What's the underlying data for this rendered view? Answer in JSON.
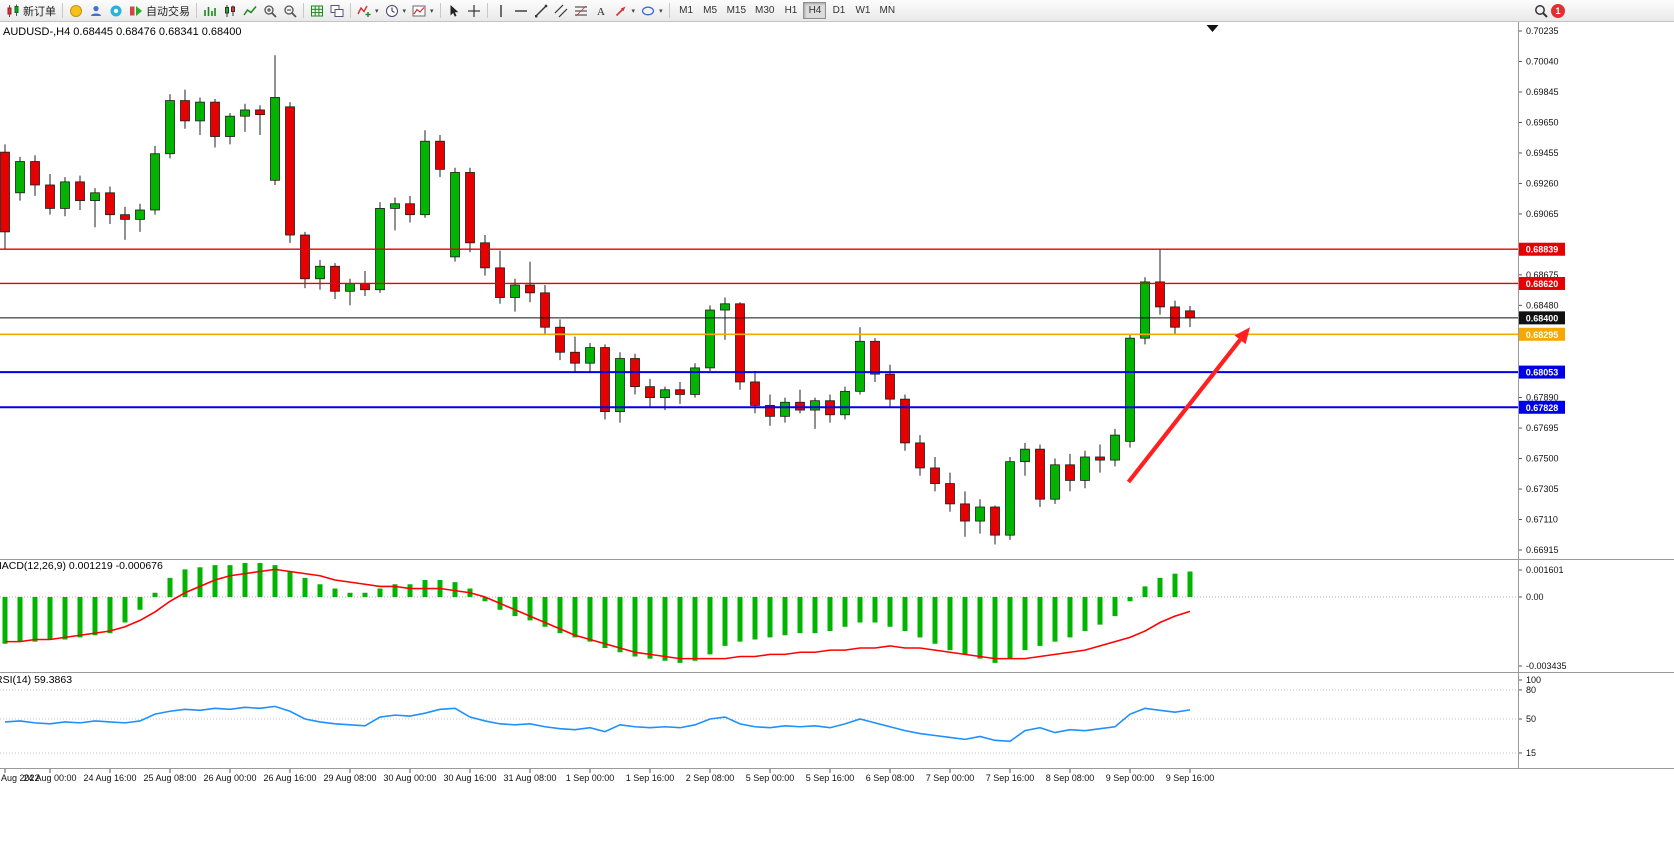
{
  "toolbar": {
    "new_order_label": "新订单",
    "auto_trading_label": "自动交易",
    "timeframes": [
      "M1",
      "M5",
      "M15",
      "M30",
      "H1",
      "H4",
      "D1",
      "W1",
      "MN"
    ],
    "active_timeframe": "H4",
    "notification_count": "1",
    "icons": [
      "new-order-icon",
      "mql5-icon",
      "profile-icon",
      "community-icon",
      "auto-trading-icon",
      "bar-chart-icon",
      "candlestick-chart-icon",
      "line-chart-icon",
      "zoom-in-icon",
      "zoom-out-icon",
      "grid-icon",
      "windows-icon",
      "indicators-icon",
      "periods-icon",
      "templates-icon",
      "cursor-icon",
      "crosshair-icon",
      "vertical-line-icon",
      "horizontal-line-icon",
      "trendline-icon",
      "channel-icon",
      "fibonacci-icon",
      "text-icon",
      "arrows-icon",
      "shapes-icon",
      "search-icon",
      "notification-badge"
    ]
  },
  "chart_header": {
    "title": "AUDUSD-,H4  0.68445 0.68476 0.68341 0.68400"
  },
  "price_axis": {
    "ticks": [
      "0.70235",
      "0.70040",
      "0.69845",
      "0.69650",
      "0.69455",
      "0.69260",
      "0.69065",
      "0.68675",
      "0.68480",
      "0.67890",
      "0.67695",
      "0.67500",
      "0.67305",
      "0.67110",
      "0.66915"
    ]
  },
  "lines": [
    {
      "label": "0.68839",
      "price": 0.68839,
      "color": "#e60000",
      "width": 1.4
    },
    {
      "label": "0.68620",
      "price": 0.6862,
      "color": "#e60000",
      "width": 1.4
    },
    {
      "label": "0.68400",
      "price": 0.684,
      "color": "#111111",
      "width": 1
    },
    {
      "label": "0.68295",
      "price": 0.68295,
      "color": "#f5a800",
      "width": 1.6
    },
    {
      "label": "0.68053",
      "price": 0.68053,
      "color": "#0000e6",
      "width": 2
    },
    {
      "label": "0.67828",
      "price": 0.67828,
      "color": "#0000e6",
      "width": 2
    }
  ],
  "indicators": {
    "macd": {
      "label": "MACD(12,26,9) 0.001219 -0.000676",
      "value_main": 0.001219,
      "value_signal": -0.000676,
      "axis_ticks": [
        "0.001601",
        "0.00",
        "-0.003435"
      ],
      "range": [
        -0.003435,
        0.001601
      ]
    },
    "rsi": {
      "label": "RSI(14) 59.3863",
      "value": 59.3863,
      "axis_ticks": [
        "100",
        "80",
        "50",
        "15"
      ],
      "levels": [
        80,
        50,
        15
      ]
    }
  },
  "time_axis": {
    "labels": [
      {
        "text": "Aug 2022",
        "bar": 0
      },
      {
        "text": "24 Aug 00:00",
        "bar": 3
      },
      {
        "text": "24 Aug 16:00",
        "bar": 7
      },
      {
        "text": "25 Aug 08:00",
        "bar": 11
      },
      {
        "text": "26 Aug 00:00",
        "bar": 15
      },
      {
        "text": "26 Aug 16:00",
        "bar": 19
      },
      {
        "text": "29 Aug 08:00",
        "bar": 23
      },
      {
        "text": "30 Aug 00:00",
        "bar": 27
      },
      {
        "text": "30 Aug 16:00",
        "bar": 31
      },
      {
        "text": "31 Aug 08:00",
        "bar": 35
      },
      {
        "text": "1 Sep 00:00",
        "bar": 39
      },
      {
        "text": "1 Sep 16:00",
        "bar": 43
      },
      {
        "text": "2 Sep 08:00",
        "bar": 47
      },
      {
        "text": "5 Sep 00:00",
        "bar": 51
      },
      {
        "text": "5 Sep 16:00",
        "bar": 55
      },
      {
        "text": "6 Sep 08:00",
        "bar": 59
      },
      {
        "text": "7 Sep 00:00",
        "bar": 63
      },
      {
        "text": "7 Sep 16:00",
        "bar": 67
      },
      {
        "text": "8 Sep 08:00",
        "bar": 71
      },
      {
        "text": "9 Sep 00:00",
        "bar": 75
      },
      {
        "text": "9 Sep 16:00",
        "bar": 79
      }
    ]
  },
  "annotations": {
    "arrow": {
      "from_bar": 74.9,
      "from_price": 0.6735,
      "to_bar": 83.0,
      "to_price": 0.6834,
      "color": "#ff2020"
    },
    "marker_bar": 80.5
  },
  "chart_data": {
    "type": "candlestick",
    "symbol": "AUDUSD-",
    "period": "H4",
    "current": {
      "open": 0.68445,
      "high": 0.68476,
      "low": 0.68341,
      "close": 0.684
    },
    "y_range": [
      0.66915,
      0.70235
    ],
    "ohlc": [
      [
        0.6946,
        0.6951,
        0.6884,
        0.6895
      ],
      [
        0.692,
        0.6943,
        0.6915,
        0.694
      ],
      [
        0.694,
        0.6944,
        0.6918,
        0.6925
      ],
      [
        0.6925,
        0.6932,
        0.6906,
        0.691
      ],
      [
        0.691,
        0.693,
        0.6905,
        0.6927
      ],
      [
        0.6927,
        0.6931,
        0.6909,
        0.6915
      ],
      [
        0.6915,
        0.6923,
        0.6898,
        0.692
      ],
      [
        0.692,
        0.6924,
        0.69,
        0.6906
      ],
      [
        0.6906,
        0.6911,
        0.689,
        0.6903
      ],
      [
        0.6903,
        0.6913,
        0.6895,
        0.6909
      ],
      [
        0.6909,
        0.695,
        0.6906,
        0.6945
      ],
      [
        0.6945,
        0.6983,
        0.6942,
        0.6979
      ],
      [
        0.6979,
        0.6986,
        0.6961,
        0.6966
      ],
      [
        0.6966,
        0.6981,
        0.6957,
        0.6978
      ],
      [
        0.6978,
        0.698,
        0.6949,
        0.6956
      ],
      [
        0.6956,
        0.6971,
        0.6951,
        0.6969
      ],
      [
        0.6969,
        0.6977,
        0.6959,
        0.6973
      ],
      [
        0.6973,
        0.6976,
        0.6957,
        0.697
      ],
      [
        0.6928,
        0.7008,
        0.6925,
        0.6981
      ],
      [
        0.6975,
        0.6978,
        0.6888,
        0.6893
      ],
      [
        0.6893,
        0.6895,
        0.6859,
        0.6865
      ],
      [
        0.6865,
        0.6877,
        0.6858,
        0.6873
      ],
      [
        0.6873,
        0.6875,
        0.6852,
        0.6857
      ],
      [
        0.6857,
        0.6865,
        0.6848,
        0.6862
      ],
      [
        0.6862,
        0.687,
        0.6854,
        0.6858
      ],
      [
        0.6858,
        0.6914,
        0.6856,
        0.691
      ],
      [
        0.691,
        0.6917,
        0.6896,
        0.6913
      ],
      [
        0.6913,
        0.6918,
        0.6901,
        0.6906
      ],
      [
        0.6906,
        0.696,
        0.6904,
        0.6953
      ],
      [
        0.6953,
        0.6957,
        0.693,
        0.6935
      ],
      [
        0.6879,
        0.6936,
        0.6876,
        0.6933
      ],
      [
        0.6933,
        0.6936,
        0.6882,
        0.6888
      ],
      [
        0.6888,
        0.6893,
        0.6867,
        0.6872
      ],
      [
        0.6872,
        0.6883,
        0.6849,
        0.6853
      ],
      [
        0.6853,
        0.6865,
        0.6844,
        0.6861
      ],
      [
        0.6861,
        0.6876,
        0.685,
        0.6856
      ],
      [
        0.6856,
        0.6861,
        0.6829,
        0.6834
      ],
      [
        0.6834,
        0.6839,
        0.6813,
        0.6818
      ],
      [
        0.6818,
        0.6828,
        0.6805,
        0.6811
      ],
      [
        0.6811,
        0.6824,
        0.6805,
        0.6821
      ],
      [
        0.6821,
        0.6823,
        0.6775,
        0.678
      ],
      [
        0.678,
        0.6818,
        0.6773,
        0.6814
      ],
      [
        0.6814,
        0.6817,
        0.6791,
        0.6796
      ],
      [
        0.6796,
        0.6801,
        0.6783,
        0.6789
      ],
      [
        0.6789,
        0.6796,
        0.6781,
        0.6794
      ],
      [
        0.6794,
        0.6799,
        0.6785,
        0.6791
      ],
      [
        0.6791,
        0.6811,
        0.6789,
        0.6808
      ],
      [
        0.6808,
        0.6848,
        0.6806,
        0.6845
      ],
      [
        0.6845,
        0.6853,
        0.6826,
        0.6849
      ],
      [
        0.6849,
        0.685,
        0.6794,
        0.6799
      ],
      [
        0.6799,
        0.6806,
        0.6779,
        0.6784
      ],
      [
        0.6784,
        0.6791,
        0.6771,
        0.6777
      ],
      [
        0.6777,
        0.6789,
        0.6773,
        0.6786
      ],
      [
        0.6786,
        0.6794,
        0.6779,
        0.6781
      ],
      [
        0.6781,
        0.6789,
        0.6769,
        0.6787
      ],
      [
        0.6787,
        0.6791,
        0.6773,
        0.6778
      ],
      [
        0.6778,
        0.6796,
        0.6775,
        0.6793
      ],
      [
        0.6793,
        0.6834,
        0.6791,
        0.6825
      ],
      [
        0.6825,
        0.6827,
        0.6799,
        0.6804
      ],
      [
        0.6804,
        0.681,
        0.6783,
        0.6788
      ],
      [
        0.6788,
        0.6791,
        0.6755,
        0.676
      ],
      [
        0.676,
        0.6765,
        0.6739,
        0.6744
      ],
      [
        0.6744,
        0.6751,
        0.6729,
        0.6734
      ],
      [
        0.6734,
        0.6741,
        0.6716,
        0.6721
      ],
      [
        0.6721,
        0.6729,
        0.67,
        0.671
      ],
      [
        0.671,
        0.6724,
        0.6702,
        0.6719
      ],
      [
        0.6719,
        0.672,
        0.6695,
        0.6701
      ],
      [
        0.6701,
        0.6751,
        0.6698,
        0.6748
      ],
      [
        0.6748,
        0.676,
        0.6739,
        0.6756
      ],
      [
        0.6756,
        0.6759,
        0.6719,
        0.6724
      ],
      [
        0.6724,
        0.675,
        0.6721,
        0.6746
      ],
      [
        0.6746,
        0.6753,
        0.6729,
        0.6736
      ],
      [
        0.6736,
        0.6755,
        0.6731,
        0.6751
      ],
      [
        0.6751,
        0.6759,
        0.6741,
        0.6749
      ],
      [
        0.6749,
        0.6769,
        0.6745,
        0.6765
      ],
      [
        0.6761,
        0.683,
        0.6757,
        0.6827
      ],
      [
        0.6827,
        0.6866,
        0.6823,
        0.6863
      ],
      [
        0.6863,
        0.6884,
        0.6842,
        0.6847
      ],
      [
        0.6847,
        0.6851,
        0.683,
        0.6834
      ],
      [
        0.68445,
        0.68476,
        0.68341,
        0.684
      ]
    ],
    "macd_hist": [
      -0.0022,
      -0.0021,
      -0.0021,
      -0.002,
      -0.002,
      -0.0019,
      -0.0018,
      -0.0017,
      -0.0012,
      -0.0006,
      0.0002,
      0.0009,
      0.0013,
      0.0014,
      0.0015,
      0.0015,
      0.0016,
      0.0016,
      0.0015,
      0.0012,
      0.0009,
      0.0006,
      0.0004,
      0.0002,
      0.0002,
      0.0004,
      0.0006,
      0.0006,
      0.0008,
      0.0008,
      0.0007,
      0.0004,
      -0.0002,
      -0.0006,
      -0.0009,
      -0.0011,
      -0.0014,
      -0.0017,
      -0.0019,
      -0.0021,
      -0.0024,
      -0.0026,
      -0.0028,
      -0.0029,
      -0.003,
      -0.0031,
      -0.003,
      -0.0027,
      -0.0023,
      -0.0021,
      -0.002,
      -0.0019,
      -0.0018,
      -0.0017,
      -0.0017,
      -0.0016,
      -0.0014,
      -0.0012,
      -0.0012,
      -0.0014,
      -0.0016,
      -0.0019,
      -0.0022,
      -0.0025,
      -0.0027,
      -0.0029,
      -0.0031,
      -0.0029,
      -0.0025,
      -0.0023,
      -0.0021,
      -0.0019,
      -0.0016,
      -0.0013,
      -0.0009,
      -0.0002,
      0.0005,
      0.0009,
      0.0011,
      0.0012
    ],
    "macd_signal": [
      -0.0021,
      -0.0021,
      -0.002,
      -0.002,
      -0.0019,
      -0.0018,
      -0.0017,
      -0.0016,
      -0.0014,
      -0.0011,
      -0.0007,
      -0.0002,
      0.0002,
      0.0005,
      0.0008,
      0.001,
      0.0011,
      0.0012,
      0.0013,
      0.0012,
      0.0011,
      0.001,
      0.0008,
      0.0007,
      0.0006,
      0.0005,
      0.0005,
      0.0004,
      0.0004,
      0.0004,
      0.0003,
      0.0002,
      0,
      -0.0003,
      -0.0006,
      -0.0009,
      -0.0012,
      -0.0015,
      -0.0018,
      -0.002,
      -0.0022,
      -0.0024,
      -0.0026,
      -0.0027,
      -0.0028,
      -0.0029,
      -0.0029,
      -0.0029,
      -0.0029,
      -0.0028,
      -0.0028,
      -0.0027,
      -0.0027,
      -0.0026,
      -0.0026,
      -0.0025,
      -0.0025,
      -0.0024,
      -0.0024,
      -0.0023,
      -0.0024,
      -0.0024,
      -0.0025,
      -0.0026,
      -0.0027,
      -0.0028,
      -0.0029,
      -0.0029,
      -0.0029,
      -0.0028,
      -0.0027,
      -0.0026,
      -0.0025,
      -0.0023,
      -0.0021,
      -0.0019,
      -0.0016,
      -0.0012,
      -0.0009,
      -0.000676
    ],
    "rsi": [
      47,
      48,
      46,
      45,
      47,
      46,
      48,
      47,
      46,
      48,
      55,
      58,
      60,
      59,
      61,
      60,
      62,
      61,
      63,
      58,
      50,
      47,
      45,
      44,
      43,
      52,
      54,
      53,
      56,
      60,
      61,
      52,
      48,
      45,
      44,
      45,
      42,
      40,
      39,
      41,
      37,
      44,
      42,
      41,
      42,
      41,
      44,
      50,
      52,
      45,
      42,
      41,
      43,
      42,
      43,
      41,
      45,
      50,
      46,
      42,
      38,
      35,
      33,
      31,
      29,
      32,
      28,
      27,
      38,
      41,
      36,
      39,
      38,
      40,
      42,
      55,
      61,
      59,
      57,
      59.3863
    ]
  }
}
